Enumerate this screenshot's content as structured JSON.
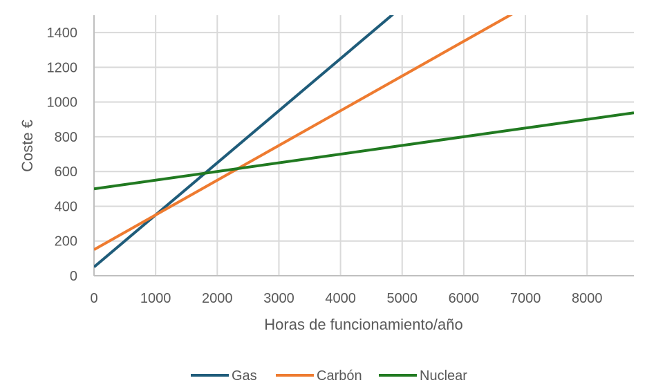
{
  "chart_data": {
    "type": "line",
    "title": "",
    "xlabel": "Horas de funcionamiento/año",
    "ylabel": "Coste €",
    "xlim": [
      0,
      8760
    ],
    "ylim": [
      0,
      1500
    ],
    "x_ticks": [
      0,
      1000,
      2000,
      3000,
      4000,
      5000,
      6000,
      7000,
      8000
    ],
    "y_ticks": [
      0,
      200,
      400,
      600,
      800,
      1000,
      1200,
      1400
    ],
    "grid": true,
    "legend_position": "bottom",
    "series": [
      {
        "name": "Gas",
        "color": "#1f5c7a",
        "x": [
          0,
          8760
        ],
        "y": [
          50,
          2678
        ]
      },
      {
        "name": "Carbón",
        "color": "#ee7b30",
        "x": [
          0,
          8760
        ],
        "y": [
          150,
          1902
        ]
      },
      {
        "name": "Nuclear",
        "color": "#217a21",
        "x": [
          0,
          8760
        ],
        "y": [
          500,
          938
        ]
      }
    ]
  }
}
